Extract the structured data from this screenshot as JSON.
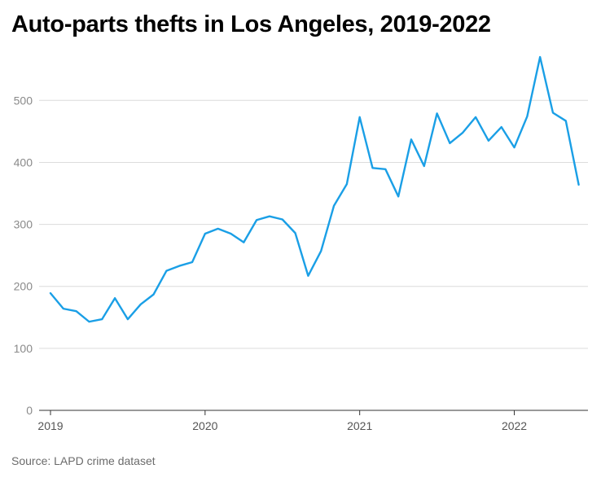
{
  "title": "Auto-parts thefts in Los Angeles, 2019-2022",
  "source": "Source: LAPD crime dataset",
  "colors": {
    "line": "#1a9fe6",
    "grid": "#dcdcdc",
    "axis": "#333333"
  },
  "chart_data": {
    "type": "line",
    "title": "Auto-parts thefts in Los Angeles, 2019-2022",
    "xlabel": "",
    "ylabel": "",
    "ylim": [
      0,
      570
    ],
    "yticks": [
      0,
      100,
      200,
      300,
      400,
      500
    ],
    "xticks": [
      "2019",
      "2020",
      "2021",
      "2022"
    ],
    "grid": "horizontal",
    "x": [
      "2019-01",
      "2019-02",
      "2019-03",
      "2019-04",
      "2019-05",
      "2019-06",
      "2019-07",
      "2019-08",
      "2019-09",
      "2019-10",
      "2019-11",
      "2019-12",
      "2020-01",
      "2020-02",
      "2020-03",
      "2020-04",
      "2020-05",
      "2020-06",
      "2020-07",
      "2020-08",
      "2020-09",
      "2020-10",
      "2020-11",
      "2020-12",
      "2021-01",
      "2021-02",
      "2021-03",
      "2021-04",
      "2021-05",
      "2021-06",
      "2021-07",
      "2021-08",
      "2021-09",
      "2021-10",
      "2021-11",
      "2021-12",
      "2022-01",
      "2022-02",
      "2022-03",
      "2022-04",
      "2022-05",
      "2022-06"
    ],
    "series": [
      {
        "values": [
          189,
          164,
          160,
          143,
          147,
          181,
          147,
          171,
          187,
          225,
          233,
          239,
          285,
          293,
          285,
          271,
          307,
          313,
          308,
          286,
          217,
          257,
          330,
          365,
          473,
          391,
          389,
          345,
          437,
          394,
          479,
          431,
          448,
          473,
          435,
          457,
          424,
          474,
          570,
          480,
          467,
          364
        ]
      }
    ]
  }
}
